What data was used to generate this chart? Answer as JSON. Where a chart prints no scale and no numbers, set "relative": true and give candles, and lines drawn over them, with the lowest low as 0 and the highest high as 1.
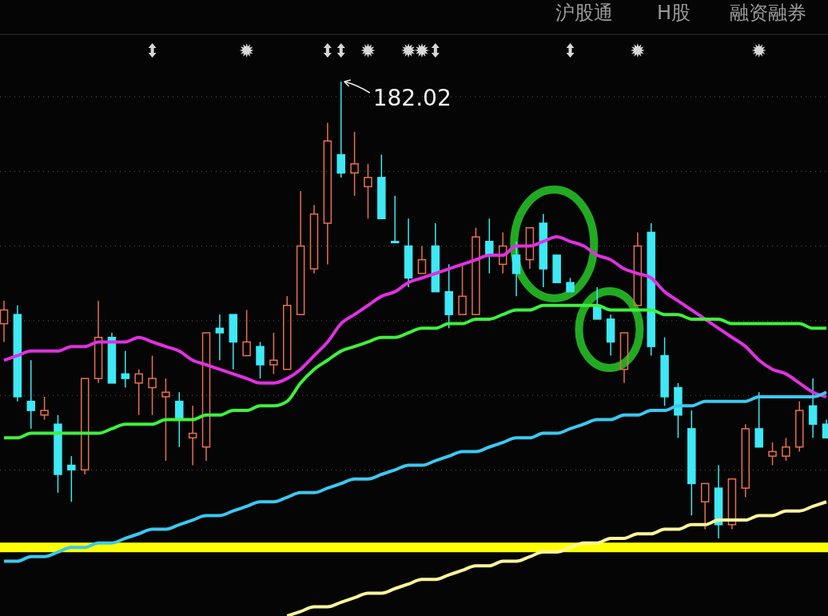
{
  "chart_data": {
    "type": "candlestick",
    "relative": true,
    "grid": true,
    "categories": [
      null,
      null,
      null,
      null,
      null,
      null,
      null,
      null,
      null,
      null,
      null,
      null,
      null,
      null,
      null,
      null,
      null,
      null,
      null,
      null,
      null,
      null,
      null,
      null,
      null,
      null,
      null,
      null,
      null,
      null,
      null,
      null,
      null,
      null,
      null,
      null,
      null,
      null,
      null,
      null,
      null,
      null,
      null,
      null,
      null,
      null,
      null,
      null,
      null,
      null,
      null,
      null,
      null,
      null,
      null,
      null,
      null,
      null,
      null,
      null,
      null,
      null
    ],
    "ohlc": [
      [
        0.47,
        0.52,
        0.43,
        0.5
      ],
      [
        0.49,
        0.51,
        0.3,
        0.31
      ],
      [
        0.3,
        0.39,
        0.24,
        0.28
      ],
      [
        0.27,
        0.31,
        0.26,
        0.28
      ],
      [
        0.25,
        0.27,
        0.1,
        0.14
      ],
      [
        0.16,
        0.18,
        0.08,
        0.15
      ],
      [
        0.15,
        0.35,
        0.14,
        0.35
      ],
      [
        0.35,
        0.52,
        0.34,
        0.44
      ],
      [
        0.44,
        0.45,
        0.34,
        0.34
      ],
      [
        0.36,
        0.41,
        0.33,
        0.35
      ],
      [
        0.34,
        0.37,
        0.27,
        0.36
      ],
      [
        0.33,
        0.4,
        0.27,
        0.35
      ],
      [
        0.31,
        0.35,
        0.17,
        0.32
      ],
      [
        0.3,
        0.32,
        0.2,
        0.26
      ],
      [
        0.22,
        0.29,
        0.16,
        0.23
      ],
      [
        0.2,
        0.45,
        0.17,
        0.45
      ],
      [
        0.46,
        0.49,
        0.39,
        0.45
      ],
      [
        0.49,
        0.49,
        0.37,
        0.43
      ],
      [
        0.4,
        0.5,
        0.4,
        0.43
      ],
      [
        0.42,
        0.43,
        0.35,
        0.38
      ],
      [
        0.38,
        0.45,
        0.36,
        0.39
      ],
      [
        0.37,
        0.53,
        0.37,
        0.51
      ],
      [
        0.49,
        0.76,
        0.49,
        0.64
      ],
      [
        0.59,
        0.73,
        0.58,
        0.71
      ],
      [
        0.69,
        0.91,
        0.6,
        0.87
      ],
      [
        0.84,
        1,
        0.79,
        0.8
      ],
      [
        0.8,
        0.89,
        0.75,
        0.82
      ],
      [
        0.77,
        0.82,
        0.7,
        0.79
      ],
      [
        0.79,
        0.84,
        0.7,
        0.7
      ],
      [
        0.65,
        0.75,
        0.65,
        0.65
      ],
      [
        0.64,
        0.7,
        0.55,
        0.57
      ],
      [
        0.58,
        0.64,
        0.58,
        0.61
      ],
      [
        0.64,
        0.69,
        0.54,
        0.54
      ],
      [
        0.54,
        0.6,
        0.46,
        0.49
      ],
      [
        0.49,
        0.6,
        0.49,
        0.53
      ],
      [
        0.49,
        0.68,
        0.49,
        0.66
      ],
      [
        0.65,
        0.7,
        0.58,
        0.62
      ],
      [
        0.6,
        0.67,
        0.58,
        0.64
      ],
      [
        0.62,
        0.65,
        0.53,
        0.58
      ],
      [
        0.61,
        0.68,
        0.59,
        0.68
      ],
      [
        0.69,
        0.71,
        0.55,
        0.59
      ],
      [
        0.62,
        0.62,
        0.56,
        0.56
      ],
      [
        0.56,
        0.57,
        0.54,
        0.54
      ],
      null,
      [
        0.51,
        0.55,
        0.48,
        0.48
      ],
      [
        0.48,
        0.49,
        0.4,
        0.43
      ],
      [
        0.37,
        0.45,
        0.34,
        0.45
      ],
      [
        0.51,
        0.67,
        0.51,
        0.64
      ],
      [
        0.67,
        0.69,
        0.4,
        0.42
      ],
      [
        0.4,
        0.44,
        0.29,
        0.31
      ],
      [
        0.33,
        0.34,
        0.22,
        0.27
      ],
      [
        0.24,
        0.28,
        0.05,
        0.12
      ],
      [
        0.08,
        0.12,
        0.02,
        0.12
      ],
      [
        0.11,
        0.16,
        0,
        0.03
      ],
      [
        0.03,
        0.13,
        0.02,
        0.13
      ],
      [
        0.11,
        0.25,
        0.09,
        0.24
      ],
      [
        0.24,
        0.32,
        0.2,
        0.2
      ],
      [
        0.18,
        0.21,
        0.16,
        0.19
      ],
      [
        0.18,
        0.22,
        0.17,
        0.2
      ],
      [
        0.2,
        0.3,
        0.19,
        0.28
      ],
      [
        0.29,
        0.35,
        0.22,
        0.25
      ],
      [
        0.25,
        0.26,
        0.22,
        0.22
      ]
    ],
    "colors": [
      "#e8704c",
      "#3ee8f5",
      "#3ee8f5",
      "#e8704c",
      "#3ee8f5",
      "#3ee8f5",
      "#e8704c",
      "#e8704c",
      "#3ee8f5",
      "#3ee8f5",
      "#e8704c",
      "#e8704c",
      "#e8704c",
      "#3ee8f5",
      "#e8704c",
      "#e8704c",
      "#3ee8f5",
      "#3ee8f5",
      "#e8704c",
      "#3ee8f5",
      "#e8704c",
      "#e8704c",
      "#e8704c",
      "#e8704c",
      "#e8704c",
      "#3ee8f5",
      "#e8704c",
      "#e8704c",
      "#3ee8f5",
      "#3ee8f5",
      "#3ee8f5",
      "#e8704c",
      "#3ee8f5",
      "#3ee8f5",
      "#e8704c",
      "#e8704c",
      "#3ee8f5",
      "#e8704c",
      "#3ee8f5",
      "#e8704c",
      "#3ee8f5",
      "#3ee8f5",
      "#3ee8f5",
      null,
      "#3ee8f5",
      "#3ee8f5",
      "#e8704c",
      "#e8704c",
      "#3ee8f5",
      "#3ee8f5",
      "#3ee8f5",
      "#3ee8f5",
      "#e8704c",
      "#3ee8f5",
      "#e8704c",
      "#e8704c",
      "#3ee8f5",
      "#e8704c",
      "#e8704c",
      "#e8704c",
      "#3ee8f5",
      "#3ee8f5"
    ],
    "series": [
      {
        "type": "line",
        "color": "#e030e0",
        "values": [
          0.39,
          0.4,
          0.41,
          0.41,
          0.41,
          0.42,
          0.42,
          0.43,
          0.43,
          0.43,
          0.44,
          0.43,
          0.42,
          0.41,
          0.39,
          0.38,
          0.37,
          0.36,
          0.35,
          0.34,
          0.34,
          0.35,
          0.37,
          0.4,
          0.43,
          0.47,
          0.49,
          0.51,
          0.53,
          0.54,
          0.56,
          0.57,
          0.58,
          0.59,
          0.6,
          0.61,
          0.62,
          0.62,
          0.64,
          0.64,
          0.65,
          0.66,
          0.65,
          0.64,
          0.62,
          0.61,
          0.59,
          0.58,
          0.57,
          0.54,
          0.52,
          0.5,
          0.48,
          0.46,
          0.44,
          0.42,
          0.39,
          0.37,
          0.36,
          0.34,
          0.32,
          0.31
        ]
      },
      {
        "type": "line",
        "color": "#3ef03e",
        "values": [
          0.22,
          0.22,
          0.23,
          0.23,
          0.23,
          0.23,
          0.23,
          0.23,
          0.24,
          0.25,
          0.25,
          0.25,
          0.26,
          0.26,
          0.26,
          0.27,
          0.27,
          0.28,
          0.28,
          0.29,
          0.29,
          0.3,
          0.34,
          0.37,
          0.39,
          0.41,
          0.42,
          0.43,
          0.44,
          0.44,
          0.45,
          0.46,
          0.46,
          0.47,
          0.47,
          0.48,
          0.48,
          0.49,
          0.5,
          0.5,
          0.51,
          0.51,
          0.51,
          0.51,
          0.51,
          0.5,
          0.5,
          0.5,
          0.5,
          0.49,
          0.49,
          0.48,
          0.48,
          0.48,
          0.47,
          0.47,
          0.47,
          0.47,
          0.47,
          0.47,
          0.46,
          0.46
        ]
      },
      {
        "type": "line",
        "color": "#3cc8f0",
        "values": [
          -0.05,
          -0.05,
          -0.04,
          -0.04,
          -0.03,
          -0.02,
          -0.02,
          -0.01,
          -0.01,
          0.0,
          0.01,
          0.02,
          0.02,
          0.03,
          0.04,
          0.05,
          0.05,
          0.06,
          0.07,
          0.08,
          0.08,
          0.09,
          0.1,
          0.1,
          0.11,
          0.12,
          0.13,
          0.13,
          0.14,
          0.15,
          0.16,
          0.16,
          0.17,
          0.18,
          0.19,
          0.19,
          0.2,
          0.21,
          0.22,
          0.22,
          0.23,
          0.23,
          0.24,
          0.25,
          0.26,
          0.26,
          0.27,
          0.27,
          0.28,
          0.28,
          0.29,
          0.29,
          0.3,
          0.3,
          0.3,
          0.3,
          0.31,
          0.31,
          0.31,
          0.31,
          0.31,
          0.32
        ]
      },
      {
        "type": "line",
        "color": "#fff59a",
        "values": [
          null,
          null,
          null,
          null,
          null,
          null,
          null,
          null,
          null,
          null,
          null,
          null,
          null,
          null,
          null,
          null,
          null,
          null,
          null,
          null,
          null,
          -0.17,
          -0.16,
          -0.15,
          -0.15,
          -0.14,
          -0.13,
          -0.12,
          -0.12,
          -0.11,
          -0.1,
          -0.09,
          -0.09,
          -0.08,
          -0.07,
          -0.06,
          -0.06,
          -0.05,
          -0.05,
          -0.04,
          -0.03,
          -0.03,
          -0.02,
          -0.01,
          -0.01,
          0.0,
          0.0,
          0.01,
          0.01,
          0.02,
          0.02,
          0.03,
          0.03,
          0.04,
          0.04,
          0.04,
          0.05,
          0.05,
          0.06,
          0.06,
          0.07,
          0.08
        ]
      }
    ],
    "ref_lines": [
      {
        "axis": "y",
        "value": -0.02,
        "color": "#ffff00"
      }
    ],
    "annotations": [
      "沪股通",
      "H股",
      "融资融券",
      "182.02"
    ]
  }
}
